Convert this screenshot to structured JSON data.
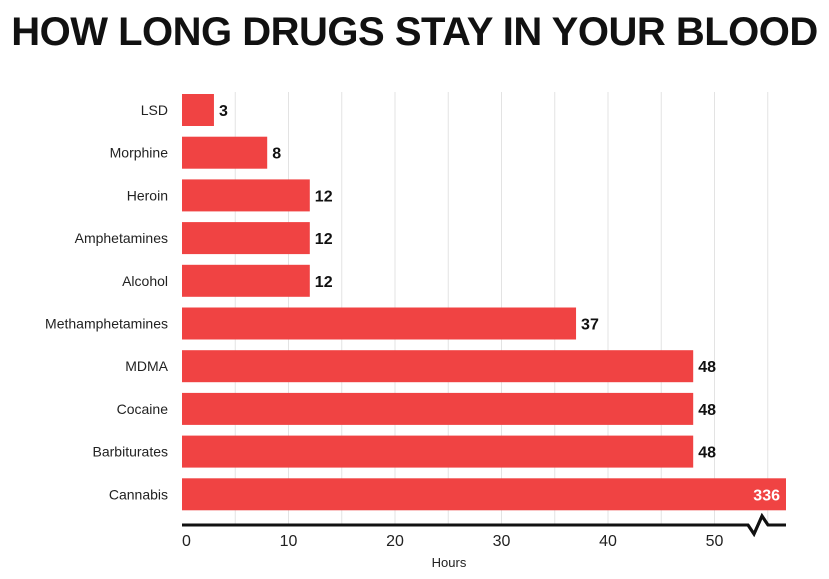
{
  "chart_data": {
    "type": "bar",
    "orientation": "horizontal",
    "title": "HOW LONG DRUGS STAY IN YOUR BLOOD",
    "xlabel": "Hours",
    "ylabel": "",
    "categories": [
      "LSD",
      "Morphine",
      "Heroin",
      "Amphetamines",
      "Alcohol",
      "Methamphetamines",
      "MDMA",
      "Cocaine",
      "Barbiturates",
      "Cannabis"
    ],
    "values": [
      3,
      8,
      12,
      12,
      12,
      37,
      48,
      48,
      48,
      336
    ],
    "value_labels": [
      "3",
      "8",
      "12",
      "12",
      "12",
      "37",
      "48",
      "48",
      "48",
      "336"
    ],
    "xlim": [
      0,
      55
    ],
    "xticks": [
      0,
      10,
      20,
      30,
      40,
      50
    ],
    "xtick_labels": [
      "0",
      "10",
      "20",
      "30",
      "40",
      "50"
    ],
    "axis_break": true,
    "grid": true,
    "colors": {
      "bar": "#f04343",
      "grid": "#e3e3e3",
      "axis": "#111111",
      "value_label": "#111111",
      "value_label_inside": "#ffffff"
    }
  }
}
